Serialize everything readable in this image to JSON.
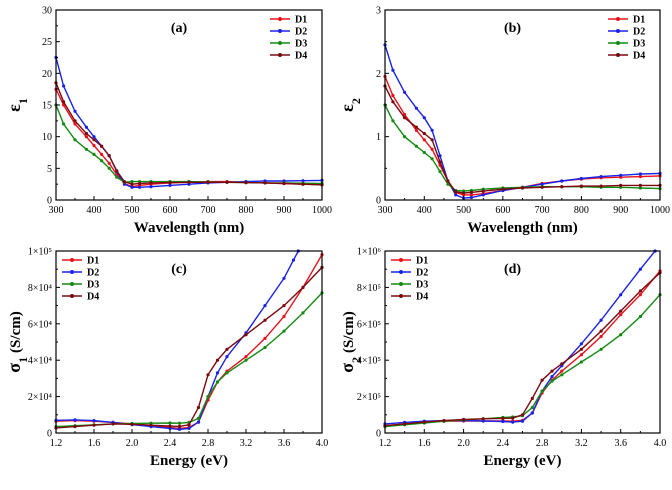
{
  "colors": {
    "D1": "#e8121b",
    "D2": "#1a22e8",
    "D3": "#158a12",
    "D4": "#7a0a10"
  },
  "chart_data": [
    {
      "type": "line",
      "panel_label": "(a)",
      "xlabel": "Wavelength (nm)",
      "ylabel_main": "ε",
      "ylabel_sub": "1",
      "xlim": [
        300,
        1000
      ],
      "ylim": [
        0,
        30
      ],
      "xticks": [
        300,
        400,
        500,
        600,
        700,
        800,
        900,
        1000
      ],
      "xtick_labels": [
        "300",
        "400",
        "500",
        "600",
        "700",
        "800",
        "900",
        "1000"
      ],
      "yticks": [
        0,
        5,
        10,
        15,
        20,
        25,
        30
      ],
      "ytick_labels": [
        "0",
        "5",
        "10",
        "15",
        "20",
        "25",
        "30"
      ],
      "legend": "top-right",
      "series": [
        {
          "name": "D1",
          "x": [
            300,
            320,
            350,
            380,
            400,
            420,
            440,
            460,
            480,
            500,
            520,
            550,
            600,
            650,
            700,
            750,
            800,
            850,
            900,
            950,
            1000
          ],
          "y": [
            17.5,
            15,
            12,
            10,
            8.6,
            7.2,
            5.8,
            4,
            2.6,
            2.1,
            2.3,
            2.5,
            2.7,
            2.8,
            2.9,
            2.9,
            2.8,
            2.7,
            2.6,
            2.5,
            2.4
          ]
        },
        {
          "name": "D2",
          "x": [
            300,
            320,
            350,
            380,
            400,
            420,
            440,
            460,
            480,
            500,
            520,
            550,
            600,
            650,
            700,
            750,
            800,
            850,
            900,
            950,
            1000
          ],
          "y": [
            22.5,
            18,
            14,
            11.5,
            10,
            8.5,
            7,
            4.5,
            2.5,
            2,
            2,
            2.1,
            2.3,
            2.5,
            2.7,
            2.8,
            2.9,
            3,
            3,
            3.05,
            3.1
          ]
        },
        {
          "name": "D3",
          "x": [
            300,
            320,
            350,
            380,
            400,
            420,
            440,
            460,
            480,
            500,
            520,
            550,
            600,
            650,
            700,
            750,
            800,
            850,
            900,
            950,
            1000
          ],
          "y": [
            15,
            12,
            9.5,
            8,
            7.2,
            6.2,
            5,
            3.6,
            2.8,
            2.9,
            2.9,
            2.9,
            2.9,
            2.9,
            2.85,
            2.8,
            2.75,
            2.7,
            2.7,
            2.65,
            2.6
          ]
        },
        {
          "name": "D4",
          "x": [
            300,
            320,
            350,
            380,
            400,
            420,
            440,
            460,
            480,
            500,
            520,
            550,
            600,
            650,
            700,
            750,
            800,
            850,
            900,
            950,
            1000
          ],
          "y": [
            18.5,
            15.5,
            12.5,
            10.5,
            9.5,
            8.5,
            7,
            4.6,
            2.9,
            2.5,
            2.6,
            2.7,
            2.75,
            2.8,
            2.8,
            2.8,
            2.75,
            2.7,
            2.6,
            2.5,
            2.4
          ]
        }
      ]
    },
    {
      "type": "line",
      "panel_label": "(b)",
      "xlabel": "Wavelength (nm)",
      "ylabel_main": "ε",
      "ylabel_sub": "2",
      "xlim": [
        300,
        1000
      ],
      "ylim": [
        0,
        3
      ],
      "xticks": [
        300,
        400,
        500,
        600,
        700,
        800,
        900,
        1000
      ],
      "xtick_labels": [
        "300",
        "400",
        "500",
        "600",
        "700",
        "800",
        "900",
        "1000"
      ],
      "yticks": [
        0,
        1,
        2,
        3
      ],
      "ytick_labels": [
        "0",
        "1",
        "2",
        "3"
      ],
      "legend": "top-right",
      "series": [
        {
          "name": "D1",
          "x": [
            300,
            320,
            350,
            380,
            400,
            420,
            440,
            460,
            480,
            500,
            520,
            550,
            600,
            650,
            700,
            750,
            800,
            850,
            900,
            950,
            1000
          ],
          "y": [
            1.95,
            1.65,
            1.35,
            1.1,
            0.95,
            0.8,
            0.55,
            0.3,
            0.12,
            0.08,
            0.08,
            0.1,
            0.15,
            0.2,
            0.26,
            0.3,
            0.33,
            0.35,
            0.36,
            0.37,
            0.38
          ]
        },
        {
          "name": "D2",
          "x": [
            300,
            320,
            350,
            380,
            400,
            420,
            440,
            460,
            480,
            500,
            520,
            550,
            600,
            650,
            700,
            750,
            800,
            850,
            900,
            950,
            1000
          ],
          "y": [
            2.45,
            2.05,
            1.7,
            1.45,
            1.3,
            1.1,
            0.7,
            0.3,
            0.08,
            0.03,
            0.04,
            0.08,
            0.15,
            0.2,
            0.25,
            0.3,
            0.34,
            0.37,
            0.39,
            0.41,
            0.42
          ]
        },
        {
          "name": "D3",
          "x": [
            300,
            320,
            350,
            380,
            400,
            420,
            440,
            460,
            480,
            500,
            520,
            550,
            600,
            650,
            700,
            750,
            800,
            850,
            900,
            950,
            1000
          ],
          "y": [
            1.5,
            1.25,
            1.0,
            0.85,
            0.75,
            0.65,
            0.45,
            0.25,
            0.15,
            0.14,
            0.15,
            0.17,
            0.19,
            0.2,
            0.21,
            0.21,
            0.21,
            0.2,
            0.2,
            0.19,
            0.18
          ]
        },
        {
          "name": "D4",
          "x": [
            300,
            320,
            350,
            380,
            400,
            420,
            440,
            460,
            480,
            500,
            520,
            550,
            600,
            650,
            700,
            750,
            800,
            850,
            900,
            950,
            1000
          ],
          "y": [
            1.8,
            1.55,
            1.3,
            1.15,
            1.05,
            0.95,
            0.6,
            0.3,
            0.13,
            0.11,
            0.12,
            0.14,
            0.17,
            0.19,
            0.2,
            0.21,
            0.22,
            0.22,
            0.23,
            0.23,
            0.23
          ]
        }
      ]
    },
    {
      "type": "line",
      "panel_label": "(c)",
      "xlabel": "Energy (eV)",
      "ylabel_main": "σ",
      "ylabel_sub": "1",
      "ylabel_unit": "(S/cm)",
      "xlim": [
        1.2,
        4.0
      ],
      "ylim": [
        0,
        100000
      ],
      "xticks": [
        1.2,
        1.6,
        2.0,
        2.4,
        2.8,
        3.2,
        3.6,
        4.0
      ],
      "xtick_labels": [
        "1.2",
        "1.6",
        "2.0",
        "2.4",
        "2.8",
        "3.2",
        "3.6",
        "4.0"
      ],
      "yticks": [
        0,
        20000,
        40000,
        60000,
        80000,
        100000
      ],
      "ytick_labels": [
        "0",
        "2×10⁴",
        "4×10⁴",
        "6×10⁴",
        "8×10⁴",
        "1×10⁵"
      ],
      "legend": "top-left",
      "series": [
        {
          "name": "D1",
          "x": [
            1.2,
            1.4,
            1.6,
            1.8,
            2.0,
            2.2,
            2.4,
            2.5,
            2.6,
            2.7,
            2.8,
            2.9,
            3.0,
            3.2,
            3.4,
            3.6,
            3.8,
            4.0
          ],
          "y": [
            6500,
            6800,
            6500,
            5800,
            5000,
            4200,
            3000,
            2500,
            3000,
            6000,
            18000,
            28000,
            34000,
            42000,
            52000,
            64000,
            80000,
            98000
          ]
        },
        {
          "name": "D2",
          "x": [
            1.2,
            1.4,
            1.6,
            1.8,
            2.0,
            2.2,
            2.4,
            2.5,
            2.6,
            2.7,
            2.8,
            2.9,
            3.0,
            3.2,
            3.4,
            3.6,
            3.7,
            3.75
          ],
          "y": [
            7000,
            7200,
            6800,
            5800,
            4600,
            3500,
            2500,
            2000,
            2500,
            6000,
            20000,
            33000,
            42000,
            55000,
            70000,
            85000,
            95000,
            100000
          ]
        },
        {
          "name": "D3",
          "x": [
            1.2,
            1.4,
            1.6,
            1.8,
            2.0,
            2.2,
            2.4,
            2.5,
            2.6,
            2.7,
            2.8,
            2.9,
            3.0,
            3.2,
            3.4,
            3.6,
            3.8,
            4.0
          ],
          "y": [
            3500,
            4000,
            4500,
            5000,
            5200,
            5400,
            5500,
            5400,
            5800,
            8000,
            20000,
            28000,
            33000,
            40000,
            47000,
            56000,
            66000,
            77000
          ]
        },
        {
          "name": "D4",
          "x": [
            1.2,
            1.4,
            1.6,
            1.8,
            2.0,
            2.2,
            2.4,
            2.5,
            2.6,
            2.7,
            2.8,
            2.9,
            3.0,
            3.2,
            3.4,
            3.6,
            3.8,
            4.0
          ],
          "y": [
            2800,
            3500,
            4300,
            5000,
            4800,
            4300,
            3800,
            3600,
            4500,
            14000,
            32000,
            40000,
            46000,
            54000,
            62000,
            70000,
            80000,
            91000
          ]
        }
      ]
    },
    {
      "type": "line",
      "panel_label": "(d)",
      "xlabel": "Energy (eV)",
      "ylabel_main": "σ",
      "ylabel_sub": "2",
      "ylabel_unit": "(S/cm)",
      "xlim": [
        1.2,
        4.0
      ],
      "ylim": [
        0,
        1000000
      ],
      "xticks": [
        1.2,
        1.6,
        2.0,
        2.4,
        2.8,
        3.2,
        3.6,
        4.0
      ],
      "xtick_labels": [
        "1.2",
        "1.6",
        "2.0",
        "2.4",
        "2.8",
        "3.2",
        "3.6",
        "4.0"
      ],
      "yticks": [
        0,
        200000,
        400000,
        600000,
        800000,
        1000000
      ],
      "ytick_labels": [
        "0",
        "2×10⁵",
        "4×10⁵",
        "6×10⁵",
        "8×10⁵",
        "1×10⁶"
      ],
      "legend": "top-left",
      "series": [
        {
          "name": "D1",
          "x": [
            1.2,
            1.4,
            1.6,
            1.8,
            2.0,
            2.2,
            2.4,
            2.5,
            2.6,
            2.7,
            2.8,
            2.9,
            3.0,
            3.2,
            3.4,
            3.6,
            3.8,
            4.0
          ],
          "y": [
            40000,
            50000,
            60000,
            65000,
            66000,
            66000,
            66000,
            65000,
            70000,
            110000,
            220000,
            290000,
            340000,
            430000,
            530000,
            650000,
            760000,
            890000
          ]
        },
        {
          "name": "D2",
          "x": [
            1.2,
            1.4,
            1.6,
            1.8,
            2.0,
            2.2,
            2.4,
            2.5,
            2.6,
            2.7,
            2.8,
            2.9,
            3.0,
            3.2,
            3.4,
            3.6,
            3.8,
            3.95
          ],
          "y": [
            50000,
            58000,
            65000,
            68000,
            68000,
            66000,
            63000,
            60000,
            65000,
            110000,
            230000,
            310000,
            370000,
            490000,
            620000,
            760000,
            900000,
            1000000
          ]
        },
        {
          "name": "D3",
          "x": [
            1.2,
            1.4,
            1.6,
            1.8,
            2.0,
            2.2,
            2.4,
            2.5,
            2.6,
            2.7,
            2.8,
            2.9,
            3.0,
            3.2,
            3.4,
            3.6,
            3.8,
            4.0
          ],
          "y": [
            35000,
            45000,
            55000,
            65000,
            72000,
            78000,
            85000,
            88000,
            95000,
            140000,
            230000,
            285000,
            320000,
            390000,
            460000,
            540000,
            640000,
            760000
          ]
        },
        {
          "name": "D4",
          "x": [
            1.2,
            1.4,
            1.6,
            1.8,
            2.0,
            2.2,
            2.4,
            2.5,
            2.6,
            2.7,
            2.8,
            2.9,
            3.0,
            3.2,
            3.4,
            3.6,
            3.8,
            4.0
          ],
          "y": [
            40000,
            50000,
            60000,
            68000,
            74000,
            78000,
            80000,
            82000,
            100000,
            190000,
            290000,
            340000,
            380000,
            460000,
            560000,
            670000,
            780000,
            880000
          ]
        }
      ]
    }
  ]
}
